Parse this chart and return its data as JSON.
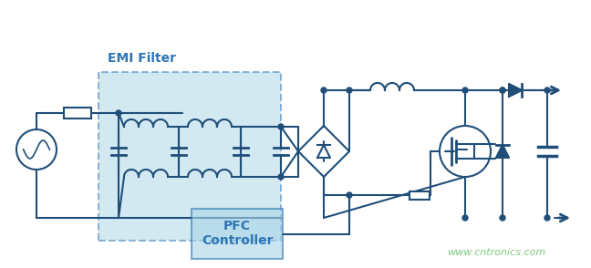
{
  "bg_color": "#ffffff",
  "line_color": "#1f4e79",
  "line_color_dark": "#1a3a5c",
  "emi_fill": "#a8d4e6",
  "emi_border": "#2e75b6",
  "pfc_fill": "#a8d4e6",
  "pfc_border": "#2e75b6",
  "emi_label": "EMI Filter",
  "pfc_label1": "PFC",
  "pfc_label2": "Controller",
  "watermark": "www.cntronics.com",
  "watermark_color": "#7fc97f",
  "lc": "#1f4e79",
  "lw": 1.5
}
